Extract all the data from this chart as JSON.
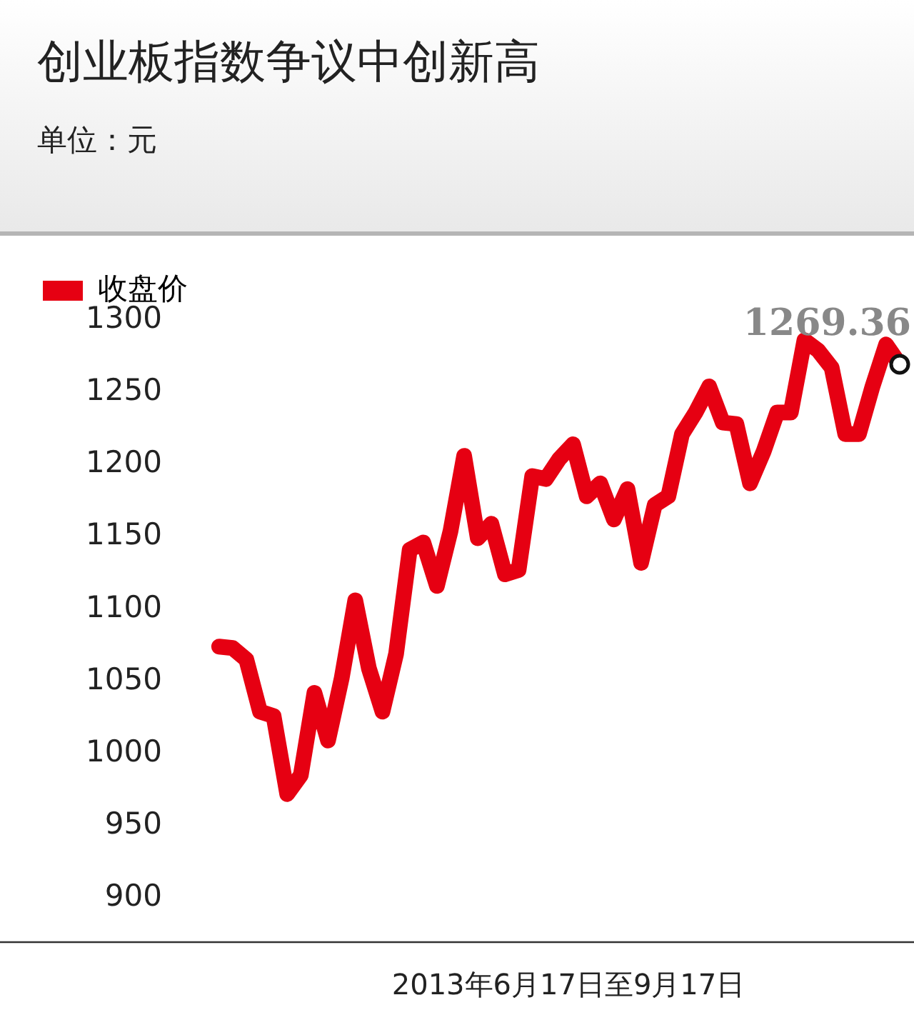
{
  "chart_data": {
    "type": "line",
    "title": "创业板指数争议中创新高",
    "subtitle": "单位：元",
    "xlabel": "2013年6月17日至9月17日",
    "categories": [
      null,
      null,
      null,
      null,
      null,
      null,
      null,
      null,
      null,
      null,
      null,
      null,
      null,
      null,
      null,
      null,
      null,
      null,
      null,
      null,
      null,
      null,
      null,
      null,
      null,
      null,
      null,
      null,
      null,
      null,
      null,
      null,
      null,
      null,
      null,
      null,
      null,
      null,
      null,
      null,
      null,
      null,
      null,
      null,
      null,
      null,
      null,
      null,
      null,
      null,
      null
    ],
    "series": [
      {
        "name": "收盘价",
        "color": "#e60012",
        "values": [
          1074,
          1073,
          1065,
          1029,
          1026,
          972,
          985,
          1042,
          1009,
          1052,
          1106,
          1059,
          1029,
          1069,
          1141,
          1146,
          1116,
          1154,
          1206,
          1149,
          1159,
          1124,
          1127,
          1192,
          1190,
          1204,
          1214,
          1178,
          1187,
          1162,
          1183,
          1132,
          1172,
          1178,
          1221,
          1236,
          1254,
          1229,
          1228,
          1187,
          1209,
          1236,
          1236,
          1286,
          1279,
          1267,
          1221,
          1221,
          1254,
          1283,
          1269.36
        ],
        "value_labels": [
          null,
          null,
          null,
          null,
          null,
          null,
          null,
          null,
          null,
          null,
          null,
          null,
          null,
          null,
          null,
          null,
          null,
          null,
          null,
          null,
          null,
          null,
          null,
          null,
          null,
          null,
          null,
          null,
          null,
          null,
          null,
          null,
          null,
          null,
          null,
          null,
          null,
          null,
          null,
          null,
          null,
          null,
          null,
          null,
          null,
          null,
          null,
          null,
          null,
          null,
          "1269.36"
        ]
      }
    ],
    "ylim": [
      870,
      1300
    ],
    "yticks": [
      900,
      950,
      1000,
      1050,
      1100,
      1150,
      1200,
      1250,
      1300
    ],
    "grid": false,
    "legend": "top left",
    "tick_labels": "y"
  }
}
